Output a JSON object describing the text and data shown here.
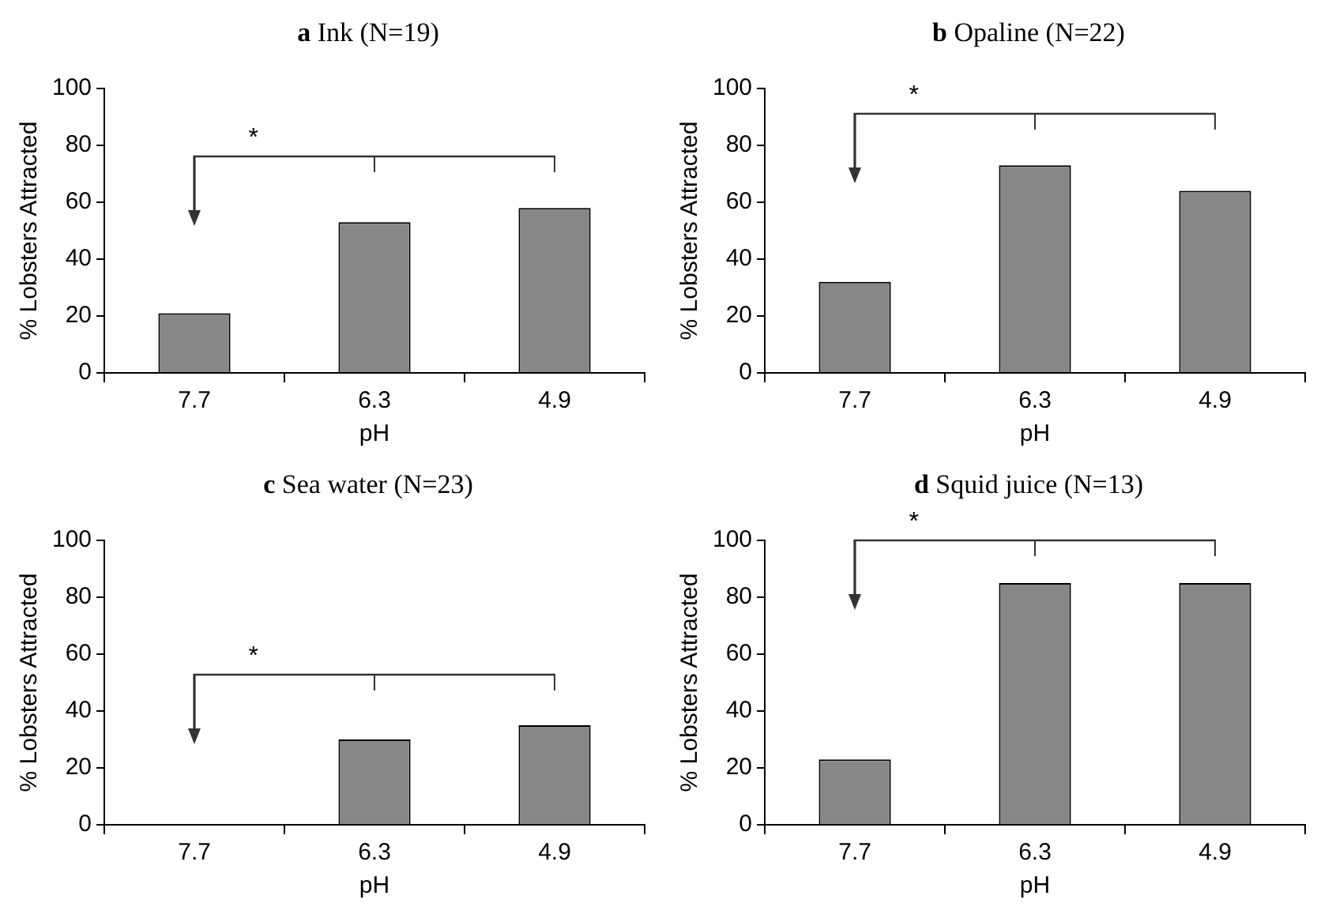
{
  "chart_data": [
    {
      "type": "bar",
      "title": "a Ink (N=19)",
      "xlabel": "pH",
      "ylabel": "% Lobsters Attracted",
      "categories": [
        "7.7",
        "6.3",
        "4.9"
      ],
      "values": [
        21,
        53,
        58
      ],
      "color": "#878787",
      "ylim": [
        0,
        100
      ],
      "yticks": [
        0,
        20,
        40,
        60,
        80,
        100
      ],
      "grid": false,
      "legend": false,
      "annotations": [
        "*"
      ]
    },
    {
      "type": "bar",
      "title": "b Opaline (N=22)",
      "xlabel": "pH",
      "ylabel": "% Lobsters Attracted",
      "categories": [
        "7.7",
        "6.3",
        "4.9"
      ],
      "values": [
        32,
        73,
        64
      ],
      "color": "#878787",
      "ylim": [
        0,
        100
      ],
      "yticks": [
        0,
        20,
        40,
        60,
        80,
        100
      ],
      "grid": false,
      "legend": false,
      "annotations": [
        "*"
      ]
    },
    {
      "type": "bar",
      "title": "c Sea water (N=23)",
      "xlabel": "pH",
      "ylabel": "% Lobsters Attracted",
      "categories": [
        "7.7",
        "6.3",
        "4.9"
      ],
      "values": [
        0,
        30,
        35
      ],
      "color": "#878787",
      "ylim": [
        0,
        100
      ],
      "yticks": [
        0,
        20,
        40,
        60,
        80,
        100
      ],
      "grid": false,
      "legend": false,
      "annotations": [
        "*"
      ]
    },
    {
      "type": "bar",
      "title": "d Squid juice (N=13)",
      "xlabel": "pH",
      "ylabel": "% Lobsters Attracted",
      "categories": [
        "7.7",
        "6.3",
        "4.9"
      ],
      "values": [
        23,
        85,
        85
      ],
      "color": "#878787",
      "ylim": [
        0,
        100
      ],
      "yticks": [
        0,
        20,
        40,
        60,
        80,
        100
      ],
      "grid": false,
      "legend": false,
      "annotations": [
        "*"
      ]
    }
  ]
}
